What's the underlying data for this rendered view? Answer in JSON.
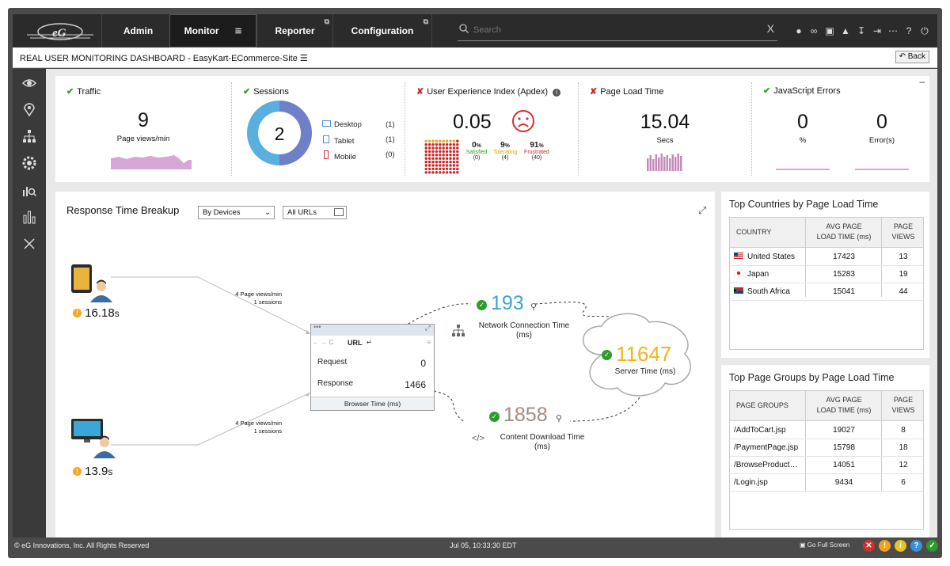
{
  "nav": {
    "tabs": [
      "Admin",
      "Monitor",
      "Reporter",
      "Configuration"
    ],
    "search_placeholder": "Search",
    "search_clear": "X"
  },
  "titlebar": {
    "title": "REAL USER MONITORING DASHBOARD - EasyKart-ECommerce-Site",
    "back_label": "Back"
  },
  "kpis": {
    "traffic": {
      "title": "Traffic",
      "value": "9",
      "unit": "Page views/min",
      "status": "ok"
    },
    "sessions": {
      "title": "Sessions",
      "value": "2",
      "status": "ok",
      "devices": [
        {
          "label": "Desktop",
          "count": "(1)"
        },
        {
          "label": "Tablet",
          "count": "(1)"
        },
        {
          "label": "Mobile",
          "count": "(0)"
        }
      ],
      "donut": [
        1,
        1,
        0
      ]
    },
    "apdex": {
      "title": "User Experience Index (Apdex)",
      "value": "0.05",
      "status": "error",
      "satisfied": {
        "pct": "0",
        "label": "Satisfied",
        "count": "(0)"
      },
      "tolerating": {
        "pct": "9",
        "label": "Tolerating",
        "count": "(4)"
      },
      "frustrated": {
        "pct": "91",
        "label": "Frustrated",
        "count": "(40)"
      },
      "pct_sign": "%"
    },
    "pageload": {
      "title": "Page Load Time",
      "value": "15.04",
      "unit": "Secs",
      "status": "error"
    },
    "jserrors": {
      "title": "JavaScript Errors",
      "pct_value": "0",
      "pct_unit": "%",
      "err_value": "0",
      "err_unit": "Error(s)",
      "status": "ok"
    }
  },
  "breakup": {
    "title": "Response Time Breakup",
    "filter_devices": "By Devices",
    "filter_urls": "All URLs",
    "tablet": {
      "time": "16.18",
      "unit": "s",
      "views": "4 Page views/min",
      "sessions": "1 sessions"
    },
    "desktop": {
      "time": "13.9",
      "unit": "s",
      "views": "4 Page views/min",
      "sessions": "1 sessions"
    },
    "browser": {
      "url_label": "URL",
      "request_label": "Request",
      "request_value": "0",
      "response_label": "Response",
      "response_value": "1466",
      "footer": "Browser Time (ms)"
    },
    "network": {
      "value": "193",
      "label1": "Network Connection Time",
      "label2": "(ms)"
    },
    "server": {
      "value": "11647",
      "label": "Server Time (ms)"
    },
    "download": {
      "value": "1858",
      "label1": "Content Download Time",
      "label2": "(ms)",
      "code": "</>"
    }
  },
  "countries": {
    "title": "Top Countries by Page Load Time",
    "headers": [
      "COUNTRY",
      "AVG PAGE",
      "LOAD TIME (ms)",
      "PAGE",
      "VIEWS"
    ],
    "rows": [
      {
        "name": "United States",
        "time": "17423",
        "views": "13"
      },
      {
        "name": "Japan",
        "time": "15283",
        "views": "19"
      },
      {
        "name": "South Africa",
        "time": "15041",
        "views": "44"
      }
    ]
  },
  "pagegroups": {
    "title": "Top Page Groups by Page Load Time",
    "headers": [
      "PAGE GROUPS",
      "AVG PAGE",
      "LOAD TIME (ms)",
      "PAGE",
      "VIEWS"
    ],
    "rows": [
      {
        "name": "/AddToCart.jsp",
        "time": "19027",
        "views": "8"
      },
      {
        "name": "/PaymentPage.jsp",
        "time": "15798",
        "views": "18"
      },
      {
        "name": "/BrowseProduct…",
        "time": "14051",
        "views": "12"
      },
      {
        "name": "/Login.jsp",
        "time": "9434",
        "views": "6"
      }
    ]
  },
  "footer": {
    "copyright": "© eG Innovations, Inc. All Rights Reserved",
    "datetime": "Jul 05, 10:33:30 EDT",
    "fullscreen": "Go Full Screen"
  },
  "colors": {
    "ok": "#2a9d2a",
    "error": "#c62828",
    "warn": "#f5a623",
    "teal": "#3aa7c9",
    "gold": "#f2b516",
    "taupe": "#a08c80",
    "donut_blue": "#5aaee0",
    "donut_indigo": "#6f7fc8"
  }
}
